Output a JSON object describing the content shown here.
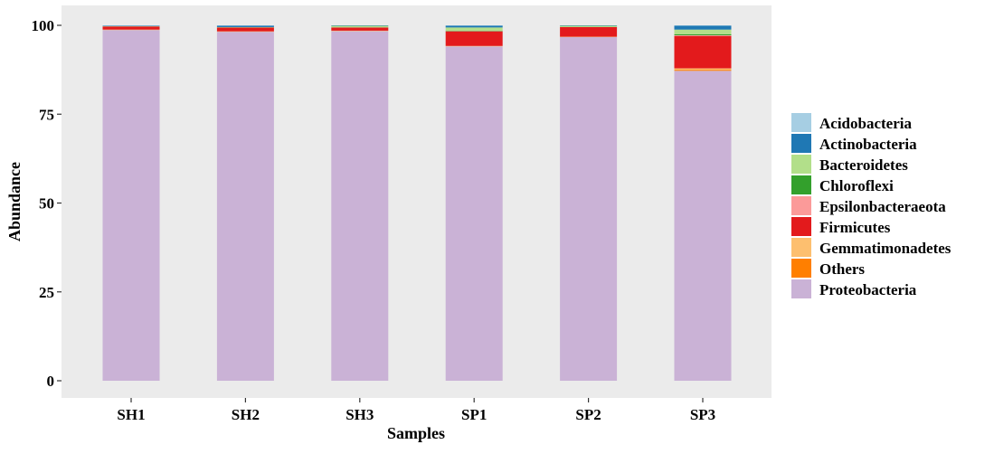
{
  "chart_data": {
    "type": "bar",
    "stacked": true,
    "title": "",
    "xlabel": "Samples",
    "ylabel": "Abundance",
    "ylim": [
      0,
      100
    ],
    "yticks": [
      0,
      25,
      50,
      75,
      100
    ],
    "grid": false,
    "legend_position": "right",
    "categories": [
      "SH1",
      "SH2",
      "SH3",
      "SP1",
      "SP2",
      "SP3"
    ],
    "series": [
      {
        "name": "Proteobacteria",
        "color": "#cab2d6",
        "values": [
          98.7,
          98.2,
          98.4,
          94.1,
          96.7,
          87.2
        ]
      },
      {
        "name": "Others",
        "color": "#ff7f00",
        "values": [
          0.0,
          0.0,
          0.0,
          0.0,
          0.0,
          0.3
        ]
      },
      {
        "name": "Gemmatimonadetes",
        "color": "#fdbf6f",
        "values": [
          0.1,
          0.1,
          0.1,
          0.1,
          0.1,
          0.4
        ]
      },
      {
        "name": "Firmicutes",
        "color": "#e31a1c",
        "values": [
          0.9,
          1.1,
          0.9,
          4.1,
          2.7,
          9.1
        ]
      },
      {
        "name": "Epsilonbacteraeota",
        "color": "#fb9a99",
        "values": [
          0.0,
          0.0,
          0.0,
          0.1,
          0.0,
          0.2
        ]
      },
      {
        "name": "Chloroflexi",
        "color": "#33a02c",
        "values": [
          0.0,
          0.0,
          0.0,
          0.1,
          0.0,
          0.3
        ]
      },
      {
        "name": "Bacteroidetes",
        "color": "#b2df8a",
        "values": [
          0.1,
          0.1,
          0.5,
          0.9,
          0.4,
          1.3
        ]
      },
      {
        "name": "Actinobacteria",
        "color": "#1f78b4",
        "values": [
          0.1,
          0.4,
          0.1,
          0.5,
          0.1,
          1.1
        ]
      },
      {
        "name": "Acidobacteria",
        "color": "#a6cee3",
        "values": [
          0.1,
          0.1,
          0.0,
          0.1,
          0.0,
          0.1
        ]
      }
    ],
    "legend_order": [
      "Acidobacteria",
      "Actinobacteria",
      "Bacteroidetes",
      "Chloroflexi",
      "Epsilonbacteraeota",
      "Firmicutes",
      "Gemmatimonadetes",
      "Others",
      "Proteobacteria"
    ],
    "panel_background": "#ebebeb"
  }
}
